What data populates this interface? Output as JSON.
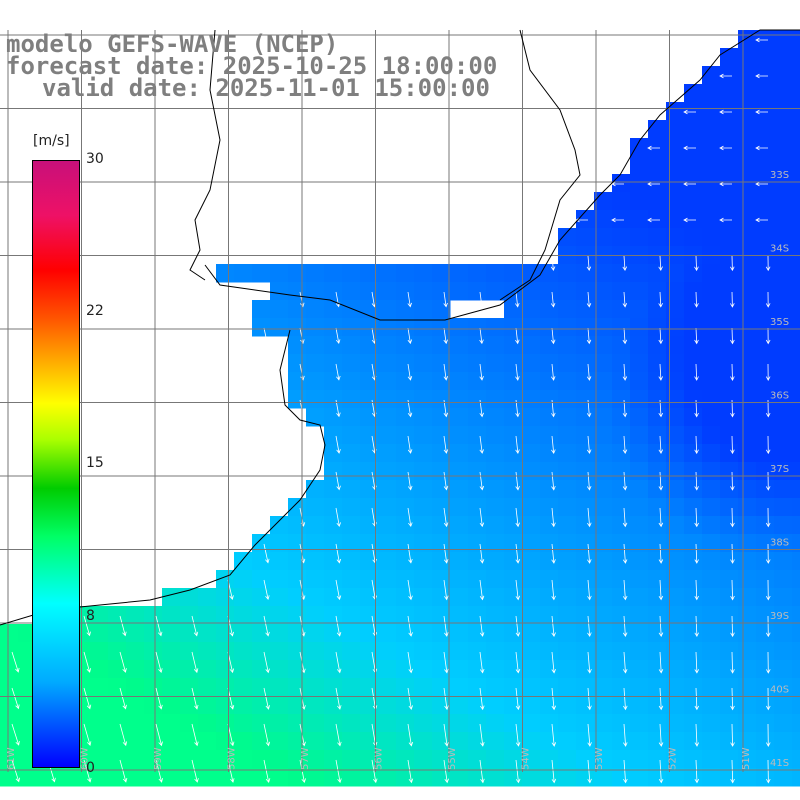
{
  "title": {
    "line1": "modelo GEFS-WAVE (NCEP)",
    "line2": "forecast date: 2025-10-25 18:00:00",
    "line3": "valid date: 2025-11-01 15:00:00"
  },
  "colorbar": {
    "unit": "[m/s]",
    "ticks": [
      "30",
      "22",
      "15",
      "8",
      "0"
    ]
  },
  "grid": {
    "lat_labels": [
      "33S",
      "34S",
      "35S",
      "36S",
      "37S",
      "38S",
      "39S",
      "40S",
      "41S"
    ],
    "lon_labels": [
      "61W",
      "60W",
      "59W",
      "58W",
      "57W",
      "56W",
      "55W",
      "54W",
      "53W",
      "52W",
      "51W"
    ]
  },
  "colors": {
    "land": "#ffffff",
    "grid": "#777777",
    "title": "#7f7f7f"
  }
}
